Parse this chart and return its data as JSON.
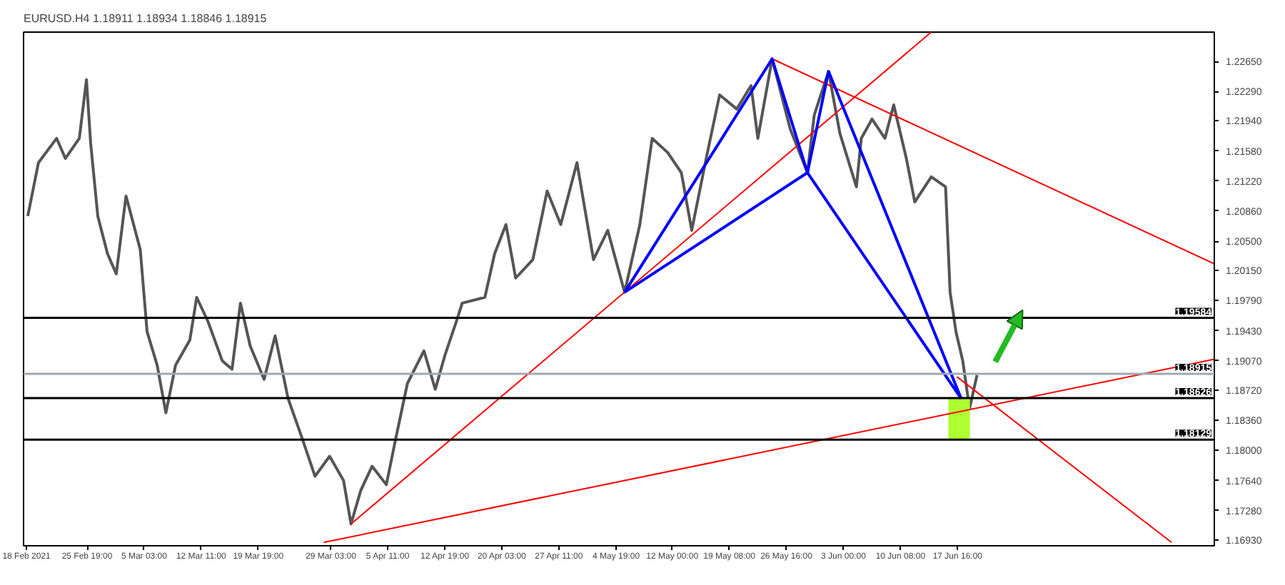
{
  "chart_data": {
    "type": "line",
    "title": "EURUSD.H4  1.18911 1.18934 1.18846 1.18915",
    "xlim": [
      "2021-02-17T15:00",
      "2021-07-20T16:00"
    ],
    "ylim": [
      1.1686,
      1.23
    ],
    "xticks": [
      {
        "value": "2021-02-18T00:00",
        "label": "18 Feb 2021"
      },
      {
        "value": "2021-02-25T19:00",
        "label": "25 Feb 19:00"
      },
      {
        "value": "2021-03-05T03:00",
        "label": "5 Mar 03:00"
      },
      {
        "value": "2021-03-12T11:00",
        "label": "12 Mar 11:00"
      },
      {
        "value": "2021-03-19T19:00",
        "label": "19 Mar 19:00"
      },
      {
        "value": "2021-03-29T03:00",
        "label": "29 Mar 03:00"
      },
      {
        "value": "2021-04-05T11:00",
        "label": "5 Apr 11:00"
      },
      {
        "value": "2021-04-12T19:00",
        "label": "12 Apr 19:00"
      },
      {
        "value": "2021-04-20T03:00",
        "label": "20 Apr 03:00"
      },
      {
        "value": "2021-04-27T11:00",
        "label": "27 Apr 11:00"
      },
      {
        "value": "2021-05-04T19:00",
        "label": "4 May 19:00"
      },
      {
        "value": "2021-05-12T00:00",
        "label": "12 May 00:00"
      },
      {
        "value": "2021-05-19T08:00",
        "label": "19 May 08:00"
      },
      {
        "value": "2021-05-26T16:00",
        "label": "26 May 16:00"
      },
      {
        "value": "2021-06-03T00:00",
        "label": "3 Jun 00:00"
      },
      {
        "value": "2021-06-10T08:00",
        "label": "10 Jun 08:00"
      },
      {
        "value": "2021-06-17T16:00",
        "label": "17 Jun 16:00"
      }
    ],
    "yticks": [
      {
        "value": 1.2265,
        "label": "1.22650"
      },
      {
        "value": 1.2229,
        "label": "1.22290"
      },
      {
        "value": 1.2194,
        "label": "1.21940"
      },
      {
        "value": 1.2158,
        "label": "1.21580"
      },
      {
        "value": 1.2122,
        "label": "1.21220"
      },
      {
        "value": 1.2086,
        "label": "1.20860"
      },
      {
        "value": 1.205,
        "label": "1.20500"
      },
      {
        "value": 1.2015,
        "label": "1.20150"
      },
      {
        "value": 1.1979,
        "label": "1.19790"
      },
      {
        "value": 1.1943,
        "label": "1.19430"
      },
      {
        "value": 1.1907,
        "label": "1.19070"
      },
      {
        "value": 1.1872,
        "label": "1.18720"
      },
      {
        "value": 1.1836,
        "label": "1.18360"
      },
      {
        "value": 1.18,
        "label": "1.18000"
      },
      {
        "value": 1.1764,
        "label": "1.17640"
      },
      {
        "value": 1.1728,
        "label": "1.17280"
      },
      {
        "value": 1.1693,
        "label": "1.16930"
      }
    ],
    "series": [
      {
        "color": "#555555",
        "x": [
          "2021-02-18T04:00",
          "2021-02-19T13:00",
          "2021-02-21T21:00",
          "2021-02-23T00:00",
          "2021-02-24T19:00",
          "2021-02-25T17:00",
          "2021-02-26T06:00",
          "2021-02-27T04:00",
          "2021-02-28T10:00",
          "2021-03-01T13:00",
          "2021-03-02T19:00",
          "2021-03-04T15:00",
          "2021-03-05T12:00",
          "2021-03-06T19:00",
          "2021-03-07T22:00",
          "2021-03-09T04:00",
          "2021-03-11T00:00",
          "2021-03-11T21:00",
          "2021-03-13T08:00",
          "2021-03-15T04:00",
          "2021-03-16T10:00",
          "2021-03-17T12:00",
          "2021-03-18T18:00",
          "2021-03-20T13:00",
          "2021-03-21T23:00",
          "2021-03-23T15:00",
          "2021-03-25T09:00",
          "2021-03-27T02:00",
          "2021-03-28T23:00",
          "2021-03-30T18:00",
          "2021-03-31T17:00",
          "2021-04-01T23:00",
          "2021-04-03T10:00",
          "2021-04-05T06:00",
          "2021-04-06T12:00",
          "2021-04-07T23:00",
          "2021-04-10T02:00",
          "2021-04-11T13:00",
          "2021-04-12T19:00",
          "2021-04-14T06:00",
          "2021-04-15T00:00",
          "2021-04-17T22:00",
          "2021-04-19T04:00",
          "2021-04-20T15:00",
          "2021-04-21T21:00",
          "2021-04-24T02:00",
          "2021-04-25T22:00",
          "2021-04-27T16:00",
          "2021-04-29T18:00",
          "2021-05-01T21:00",
          "2021-05-03T17:00",
          "2021-05-05T21:00",
          "2021-05-07T20:00",
          "2021-05-09T10:00",
          "2021-05-11T10:00",
          "2021-05-13T04:00",
          "2021-05-14T12:00",
          "2021-05-16T06:00",
          "2021-05-18T02:00",
          "2021-05-20T07:00",
          "2021-05-22T03:00",
          "2021-05-23T00:00",
          "2021-05-24T20:00",
          "2021-05-27T04:00",
          "2021-05-29T09:00",
          "2021-05-30T06:00",
          "2021-06-01T02:00",
          "2021-06-02T13:00",
          "2021-06-04T16:00",
          "2021-06-05T07:00",
          "2021-06-06T16:00",
          "2021-06-08T08:00",
          "2021-06-09T11:00",
          "2021-06-11T02:00",
          "2021-06-12T04:00",
          "2021-06-14T07:00",
          "2021-06-16T03:00",
          "2021-06-16T17:00",
          "2021-06-17T11:00",
          "2021-06-18T08:00",
          "2021-06-19T05:00",
          "2021-06-20T04:00"
        ],
        "values": [
          1.208,
          1.2144,
          1.2173,
          1.2149,
          1.2173,
          1.2243,
          1.2167,
          1.208,
          1.2035,
          1.2011,
          1.2104,
          1.204,
          1.1942,
          1.1902,
          1.1845,
          1.1902,
          1.1932,
          1.1983,
          1.1954,
          1.1907,
          1.1897,
          1.1976,
          1.1925,
          1.1885,
          1.1937,
          1.1862,
          1.1816,
          1.1769,
          1.1793,
          1.1764,
          1.1712,
          1.1752,
          1.1781,
          1.1759,
          1.1816,
          1.188,
          1.1919,
          1.1873,
          1.1914,
          1.1954,
          1.1976,
          1.1983,
          1.2035,
          1.207,
          1.2006,
          1.2028,
          1.211,
          1.207,
          1.2144,
          1.2028,
          1.2063,
          1.1989,
          1.207,
          1.2173,
          1.2156,
          1.2132,
          1.2063,
          1.2144,
          1.2225,
          1.2208,
          1.2236,
          1.2173,
          1.2268,
          1.2184,
          1.2132,
          1.2201,
          1.2253,
          1.2179,
          1.2115,
          1.2173,
          1.2196,
          1.2173,
          1.2213,
          1.2149,
          1.2097,
          1.2127,
          1.2115,
          1.1989,
          1.1942,
          1.1907,
          1.185,
          1.189
        ]
      },
      {
        "type": "bar",
        "color": "#adff2f",
        "x": [
          "2021-06-17T21:00"
        ],
        "base": [
          1.1813
        ],
        "values": [
          0.005
        ]
      },
      {
        "color": "#ff0000",
        "x": [
          "2021-03-31T17:00",
          "2021-06-14T07:00"
        ],
        "values": [
          1.1712,
          1.23
        ]
      },
      {
        "color": "#ff0000",
        "x": [
          "2021-03-28T05:00",
          "2021-07-20T16:00"
        ],
        "values": [
          1.169,
          1.1909
        ]
      },
      {
        "color": "#ff0000",
        "x": [
          "2021-05-24T20:00",
          "2021-07-20T16:00"
        ],
        "values": [
          1.2268,
          1.2023
        ]
      },
      {
        "color": "#ff0000",
        "x": [
          "2021-06-17T14:00",
          "2021-07-15T04:00"
        ],
        "values": [
          1.1888,
          1.169
        ]
      },
      {
        "color": "#0000ff",
        "x": [
          "2021-05-05T21:00",
          "2021-05-24T20:00",
          "2021-05-29T09:00",
          "2021-06-01T02:00",
          "2021-06-18T03:00"
        ],
        "values": [
          1.1989,
          1.2268,
          1.2132,
          1.2253,
          1.1862
        ]
      },
      {
        "color": "#0000ff",
        "x": [
          "2021-05-05T21:00",
          "2021-05-29T09:00",
          "2021-06-18T03:00"
        ],
        "values": [
          1.1989,
          1.2132,
          1.1862
        ]
      }
    ],
    "ref_lines": [
      {
        "axis": "y",
        "value": 1.19584,
        "label": "1.19584",
        "color": "#000000"
      },
      {
        "axis": "y",
        "value": 1.18915,
        "label": "1.18915",
        "color": "#a0a8b0"
      },
      {
        "axis": "y",
        "value": 1.18626,
        "label": "1.18626",
        "color": "#000000"
      },
      {
        "axis": "y",
        "value": 1.18129,
        "label": "1.18129",
        "color": "#000000"
      }
    ],
    "grid": false
  }
}
